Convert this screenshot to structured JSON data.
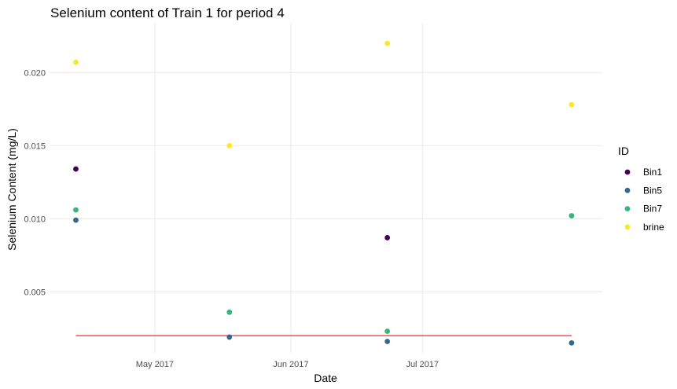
{
  "chart_data": {
    "type": "scatter",
    "title": "Selenium content of Train 1 for period 4",
    "xlabel": "Date",
    "ylabel": "Selenium Content (mg/L)",
    "x_axis_type": "date",
    "xlim": [
      "2017-04-07",
      "2017-08-11"
    ],
    "ylim": [
      0.00082,
      0.02335
    ],
    "x_ticks": [
      {
        "date": "2017-05-01",
        "label": "May 2017"
      },
      {
        "date": "2017-06-01",
        "label": "Jun 2017"
      },
      {
        "date": "2017-07-01",
        "label": "Jul 2017"
      }
    ],
    "y_ticks": [
      {
        "value": 0.005,
        "label": "0.005"
      },
      {
        "value": 0.01,
        "label": "0.010"
      },
      {
        "value": 0.015,
        "label": "0.015"
      },
      {
        "value": 0.02,
        "label": "0.020"
      }
    ],
    "grid": true,
    "legend": {
      "title": "ID",
      "position": "right"
    },
    "series": [
      {
        "name": "Bin1",
        "color": "#440154",
        "points": [
          {
            "x": "2017-04-13",
            "y": 0.0134
          },
          {
            "x": "2017-06-23",
            "y": 0.0087
          }
        ]
      },
      {
        "name": "Bin5",
        "color": "#31688E",
        "points": [
          {
            "x": "2017-04-13",
            "y": 0.0099
          },
          {
            "x": "2017-05-18",
            "y": 0.0019
          },
          {
            "x": "2017-06-23",
            "y": 0.0016
          },
          {
            "x": "2017-08-04",
            "y": 0.0015
          }
        ]
      },
      {
        "name": "Bin7",
        "color": "#35B779",
        "points": [
          {
            "x": "2017-04-13",
            "y": 0.0106
          },
          {
            "x": "2017-05-18",
            "y": 0.0036
          },
          {
            "x": "2017-06-23",
            "y": 0.0023
          },
          {
            "x": "2017-08-04",
            "y": 0.0102
          }
        ]
      },
      {
        "name": "brine",
        "color": "#FDE725",
        "points": [
          {
            "x": "2017-04-13",
            "y": 0.0207
          },
          {
            "x": "2017-05-18",
            "y": 0.015
          },
          {
            "x": "2017-06-23",
            "y": 0.022
          },
          {
            "x": "2017-08-04",
            "y": 0.0178
          }
        ]
      }
    ],
    "reference_line": {
      "color": "#E41A1C",
      "y": 0.002,
      "x_start": "2017-04-13",
      "x_end": "2017-08-04"
    }
  }
}
